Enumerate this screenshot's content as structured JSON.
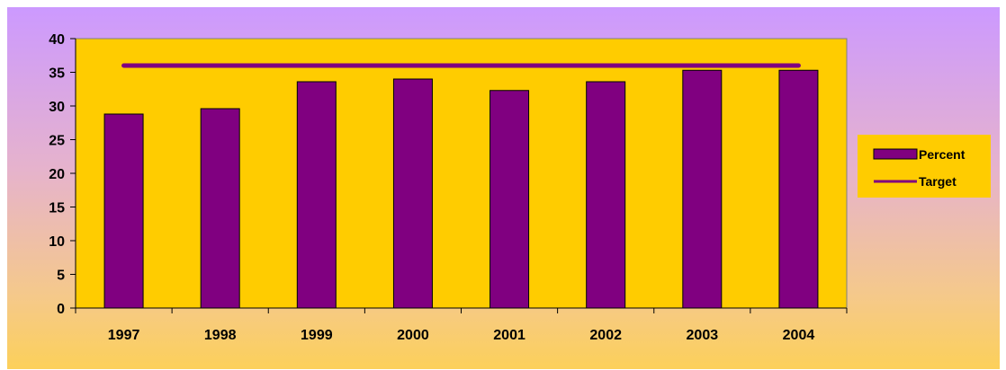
{
  "chart_data": {
    "type": "bar",
    "categories": [
      "1997",
      "1998",
      "1999",
      "2000",
      "2001",
      "2002",
      "2003",
      "2004"
    ],
    "series": [
      {
        "name": "Percent",
        "kind": "bar",
        "values": [
          28.8,
          29.6,
          33.6,
          34.0,
          32.3,
          33.6,
          35.3,
          35.3
        ]
      },
      {
        "name": "Target",
        "kind": "line",
        "values": [
          36,
          36,
          36,
          36,
          36,
          36,
          36,
          36
        ]
      }
    ],
    "title": "",
    "xlabel": "",
    "ylabel": "",
    "ylim": [
      0,
      40
    ],
    "yticks": [
      "0",
      "5",
      "10",
      "15",
      "20",
      "25",
      "30",
      "35",
      "40"
    ],
    "grid": false,
    "legend_position": "right",
    "colors": {
      "plot_background": "#ffcc00",
      "bar_fill": "#800080",
      "line": "#800080",
      "legend_background": "#ffcc00"
    }
  }
}
